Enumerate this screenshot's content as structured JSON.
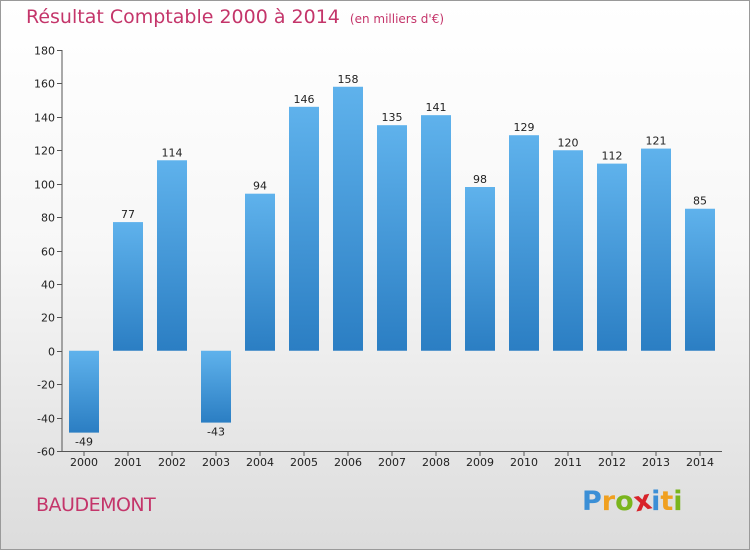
{
  "header": {
    "title": "Résultat Comptable 2000 à 2014",
    "unit": "(en milliers d'€)"
  },
  "footer": {
    "place": "BAUDEMONT",
    "logo": "Proxiti",
    "logo_letters": [
      {
        "ch": "P",
        "color": "#3b8fd6"
      },
      {
        "ch": "r",
        "color": "#f0a020"
      },
      {
        "ch": "o",
        "color": "#7ab51d"
      },
      {
        "ch": "x",
        "color": "#d8232a"
      },
      {
        "ch": "i",
        "color": "#3b8fd6"
      },
      {
        "ch": "t",
        "color": "#f0a020"
      },
      {
        "ch": "i",
        "color": "#7ab51d"
      }
    ]
  },
  "colors": {
    "title": "#c4356a",
    "bar_top": "#5fb2ec",
    "bar_bottom": "#2b7ec3",
    "axis": "#555555"
  },
  "chart_data": {
    "type": "bar",
    "title": "Résultat Comptable 2000 à 2014",
    "subtitle": "(en milliers d'€)",
    "xlabel": "",
    "ylabel": "",
    "categories": [
      "2000",
      "2001",
      "2002",
      "2003",
      "2004",
      "2005",
      "2006",
      "2007",
      "2008",
      "2009",
      "2010",
      "2011",
      "2012",
      "2013",
      "2014"
    ],
    "values": [
      -49,
      77,
      114,
      -43,
      94,
      146,
      158,
      135,
      141,
      98,
      129,
      120,
      112,
      121,
      85
    ],
    "ylim": [
      -60,
      180
    ],
    "yticks": [
      -60,
      -40,
      -20,
      0,
      20,
      40,
      60,
      80,
      100,
      120,
      140,
      160,
      180
    ],
    "grid": false,
    "legend": "none"
  }
}
